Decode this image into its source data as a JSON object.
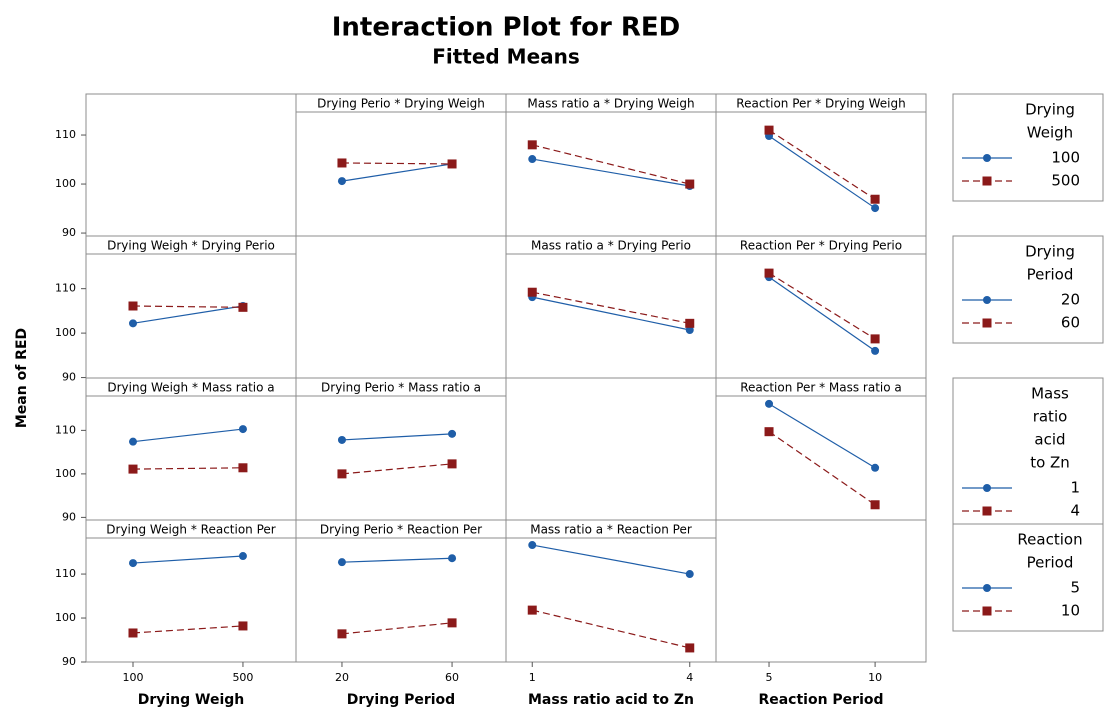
{
  "chart_data": {
    "type": "interaction",
    "title": "Interaction Plot for RED",
    "subtitle": "Fitted Means",
    "y_label": "Mean of RED",
    "colors": [
      "#1f5ea8",
      "#8b1a1a"
    ],
    "yticks": [
      90,
      100,
      110
    ],
    "row_ylims": [
      [
        89.4,
        114.7
      ],
      [
        89.9,
        117.8
      ],
      [
        89.4,
        117.9
      ],
      [
        90,
        118.2
      ]
    ],
    "factors": [
      {
        "name": "Drying Weigh",
        "legend_title": [
          "Drying",
          "Weigh"
        ],
        "levels": [
          100,
          500
        ],
        "xlim": [
          -71,
          693
        ]
      },
      {
        "name": "Drying Period",
        "legend_title": [
          "Drying",
          "Period"
        ],
        "levels": [
          20,
          60
        ],
        "xlim": [
          3.3,
          79.6
        ]
      },
      {
        "name": "Mass ratio acid to Zn",
        "legend_title": [
          "Mass",
          "ratio",
          "acid",
          "to Zn"
        ],
        "levels": [
          1,
          4
        ],
        "xlim": [
          0.5,
          4.5
        ]
      },
      {
        "name": "Reaction Period",
        "legend_title": [
          "Reaction",
          "Period"
        ],
        "levels": [
          5,
          10
        ],
        "xlim": [
          2.5,
          12.4
        ]
      }
    ],
    "panels": [
      {
        "title": "Drying Perio * Drying Weigh",
        "row": 0,
        "col": 1,
        "series": [
          [
            100.6,
            104.1
          ],
          [
            104.3,
            104.1
          ]
        ]
      },
      {
        "title": "Mass ratio a * Drying Weigh",
        "row": 0,
        "col": 2,
        "series": [
          [
            105.1,
            99.6
          ],
          [
            108.0,
            100.0
          ]
        ]
      },
      {
        "title": "Reaction Per * Drying Weigh",
        "row": 0,
        "col": 3,
        "series": [
          [
            109.8,
            95.1
          ],
          [
            111.0,
            96.9
          ]
        ]
      },
      {
        "title": "Drying Weigh * Drying Perio",
        "row": 1,
        "col": 0,
        "series": [
          [
            102.2,
            106.1
          ],
          [
            106.1,
            105.8
          ]
        ]
      },
      {
        "title": "Mass ratio a * Drying Perio",
        "row": 1,
        "col": 2,
        "series": [
          [
            108.1,
            100.7
          ],
          [
            109.2,
            102.2
          ]
        ]
      },
      {
        "title": "Reaction Per * Drying Perio",
        "row": 1,
        "col": 3,
        "series": [
          [
            112.6,
            96.0
          ],
          [
            113.5,
            98.7
          ]
        ]
      },
      {
        "title": "Drying Weigh * Mass ratio a",
        "row": 2,
        "col": 0,
        "series": [
          [
            107.4,
            110.3
          ],
          [
            101.1,
            101.4
          ]
        ]
      },
      {
        "title": "Drying Perio * Mass ratio a",
        "row": 2,
        "col": 1,
        "series": [
          [
            107.8,
            109.2
          ],
          [
            100.0,
            102.3
          ]
        ]
      },
      {
        "title": "Reaction Per * Mass ratio a",
        "row": 2,
        "col": 3,
        "series": [
          [
            116.1,
            101.4
          ],
          [
            109.7,
            92.9
          ]
        ]
      },
      {
        "title": "Drying Weigh * Reaction Per",
        "row": 3,
        "col": 0,
        "series": [
          [
            112.5,
            114.1
          ],
          [
            96.6,
            98.2
          ]
        ]
      },
      {
        "title": "Drying Perio * Reaction Per",
        "row": 3,
        "col": 1,
        "series": [
          [
            112.7,
            113.6
          ],
          [
            96.4,
            98.9
          ]
        ]
      },
      {
        "title": "Mass ratio a * Reaction Per",
        "row": 3,
        "col": 2,
        "series": [
          [
            116.6,
            110.0
          ],
          [
            101.8,
            93.2
          ]
        ]
      }
    ]
  }
}
